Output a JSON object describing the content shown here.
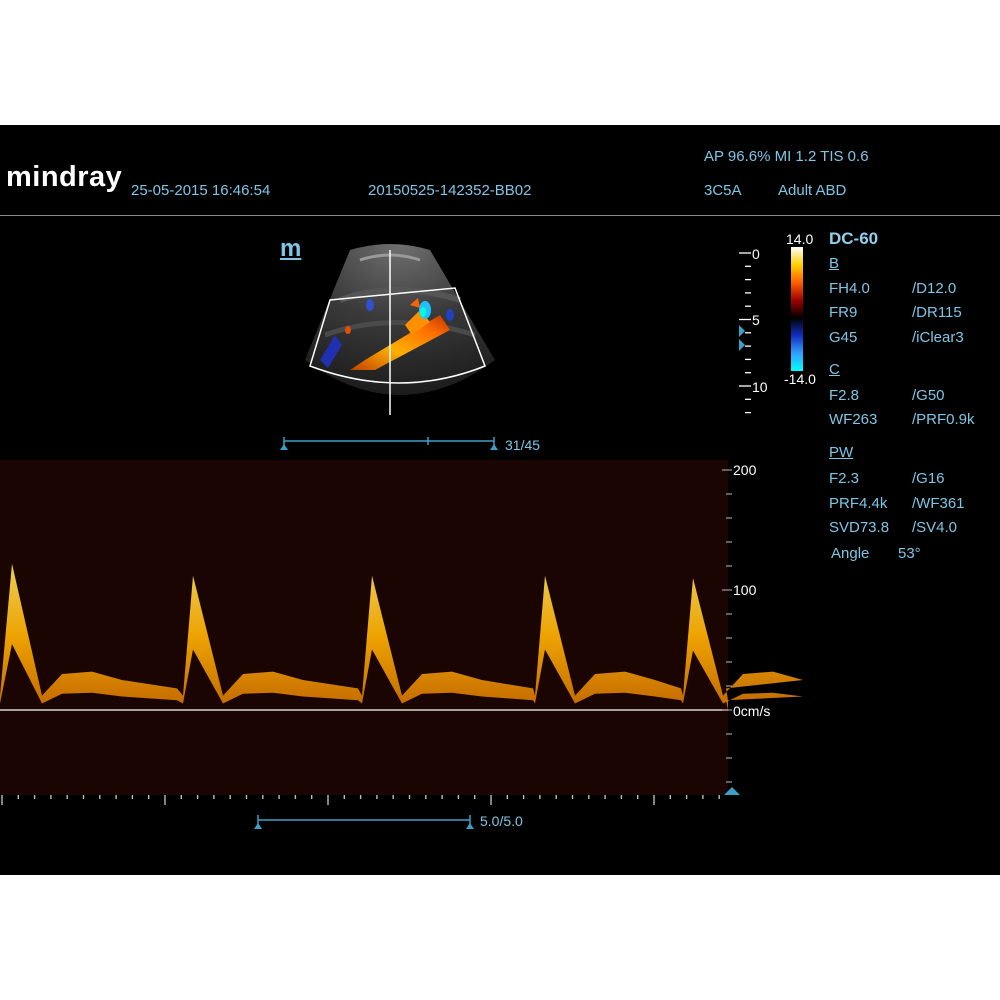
{
  "header": {
    "brand": "mindray",
    "datetime": "25-05-2015 16:46:54",
    "exam_id": "20150525-142352-BB02",
    "acoustic": "AP 96.6%  MI 1.2 TIS 0.6",
    "probe": "3C5A",
    "preset": "Adult ABD"
  },
  "image_panel": {
    "mode_logo": "m",
    "depth_ticks": [
      "0",
      "5",
      "10"
    ],
    "frame_counter": "31/45"
  },
  "color_scale": {
    "max": "14.0",
    "min": "-14.0",
    "colors": [
      "#ffffff",
      "#ffd000",
      "#ff6000",
      "#a00000",
      "#000000",
      "#1030c0",
      "#30a0ff",
      "#00ffff"
    ]
  },
  "params": {
    "title": "DC-60",
    "b_label": "B",
    "b_rows": [
      [
        "FH4.0",
        "/D12.0"
      ],
      [
        "FR9",
        "/DR115"
      ],
      [
        "G45",
        "/iClear3"
      ]
    ],
    "c_label": "C",
    "c_rows": [
      [
        "F2.8",
        "/G50"
      ],
      [
        "WF263",
        "/PRF0.9k"
      ]
    ],
    "pw_label": "PW",
    "pw_rows": [
      [
        "F2.3",
        "/G16"
      ],
      [
        "PRF4.4k",
        "/WF361"
      ],
      [
        "SVD73.8",
        "/SV4.0"
      ]
    ],
    "angle_label": "Angle",
    "angle_value": "53°"
  },
  "doppler": {
    "scale_labels": [
      "200",
      "100",
      "0cm/s"
    ],
    "time_counter": "5.0/5.0",
    "velocity_max": 200,
    "peaks_cm_s": [
      122,
      112,
      112,
      112,
      110
    ],
    "baseline_cm_s": 0
  }
}
